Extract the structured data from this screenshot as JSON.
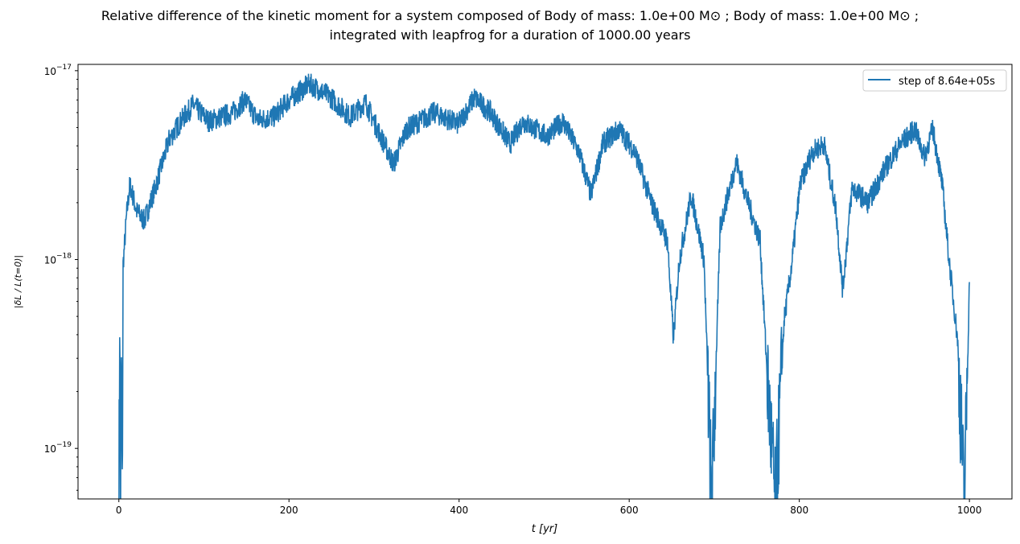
{
  "chart_data": {
    "type": "line",
    "title_line1": "Relative difference of the kinetic moment for a system composed of Body of mass: 1.0e+00 M⊙ ; Body of mass: 1.0e+00 M⊙ ;",
    "title_line2": "integrated with leapfrog for a duration of 1000.00 years",
    "xlabel": "t [yr]",
    "ylabel": "|δL / L(t=0)|",
    "xlim": [
      -48,
      1050
    ],
    "ylim": [
      5.4e-20,
      1.08e-17
    ],
    "yscale": "log",
    "x_ticks": [
      "0",
      "200",
      "400",
      "600",
      "800",
      "1000"
    ],
    "y_ticks": [
      {
        "base": "10",
        "exp": "−17"
      },
      {
        "base": "10",
        "exp": "−18"
      },
      {
        "base": "10",
        "exp": "−19"
      }
    ],
    "grid": false,
    "legend_position": "top-right",
    "color": "#1f77b4",
    "series": [
      {
        "name": "step of 8.64e+05s",
        "x": [
          0,
          1,
          2,
          3,
          4,
          5,
          9,
          13,
          21,
          30,
          44,
          59,
          73,
          87,
          106,
          134,
          148,
          163,
          182,
          200,
          224,
          248,
          272,
          290,
          304,
          323,
          338,
          371,
          399,
          418,
          437,
          460,
          475,
          503,
          522,
          541,
          555,
          569,
          588,
          607,
          626,
          645,
          652,
          659,
          673,
          688,
          697,
          707,
          726,
          740,
          754,
          763,
          772,
          782,
          791,
          801,
          815,
          829,
          843,
          851,
          862,
          881,
          900,
          919,
          936,
          947,
          957,
          968,
          976,
          986,
          990,
          994,
          1000
        ],
        "y": [
          5e-20,
          4.2e-19,
          5e-20,
          3e-19,
          5e-20,
          9.3e-19,
          1.7e-18,
          2.5e-18,
          1.8e-18,
          1.6e-18,
          2.5e-18,
          4.3e-18,
          5.4e-18,
          6.6e-18,
          5.4e-18,
          6e-18,
          7e-18,
          5.5e-18,
          5.7e-18,
          7e-18,
          8.5e-18,
          7.3e-18,
          5.7e-18,
          6.8e-18,
          4.9e-18,
          3.2e-18,
          4.9e-18,
          6e-18,
          5.2e-18,
          7.2e-18,
          6e-18,
          4.1e-18,
          5.4e-18,
          4.5e-18,
          5.4e-18,
          3.7e-18,
          2.2e-18,
          4.1e-18,
          4.9e-18,
          3.7e-18,
          2e-18,
          1.25e-18,
          3.8e-19,
          1e-18,
          2.2e-18,
          1e-18,
          5e-20,
          1.5e-18,
          3.3e-18,
          2e-18,
          1.25e-18,
          2.1e-19,
          5e-20,
          4.7e-19,
          9.3e-19,
          2.5e-18,
          3.7e-18,
          4.1e-18,
          1.85e-18,
          6.9e-19,
          2.4e-18,
          2e-18,
          3e-18,
          4.1e-18,
          4.9e-18,
          3.5e-18,
          4.9e-18,
          2.5e-18,
          1e-18,
          3.8e-19,
          1.4e-19,
          5e-20,
          7.6e-19
        ]
      }
    ]
  }
}
